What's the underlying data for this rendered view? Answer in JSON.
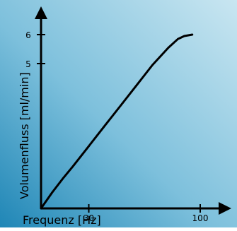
{
  "chart_data": {
    "type": "line",
    "xlabel": "Frequenz [Hz]",
    "ylabel": "Volumenfluss [ml/min]",
    "x_ticks": [
      {
        "value": 30,
        "label": "30"
      },
      {
        "value": 100,
        "label": "100"
      }
    ],
    "y_ticks": [
      {
        "value": 5,
        "label": "5"
      },
      {
        "value": 6,
        "label": "6"
      }
    ],
    "xlim": [
      0,
      100
    ],
    "ylim": [
      0,
      6
    ],
    "grid": false,
    "series": [
      {
        "x": [
          0,
          7,
          14,
          20,
          30,
          40,
          50,
          60,
          70,
          80,
          86,
          90,
          95
        ],
        "y": [
          0,
          0.55,
          1.05,
          1.45,
          2.15,
          2.85,
          3.55,
          4.25,
          4.95,
          5.55,
          5.85,
          5.95,
          6.0
        ]
      }
    ],
    "colors": {
      "line": "#000000",
      "axis": "#000000",
      "bg_light": "#c9e6f1",
      "bg_mid": "#7dc0dc",
      "bg_dark": "#1f86b6"
    }
  }
}
